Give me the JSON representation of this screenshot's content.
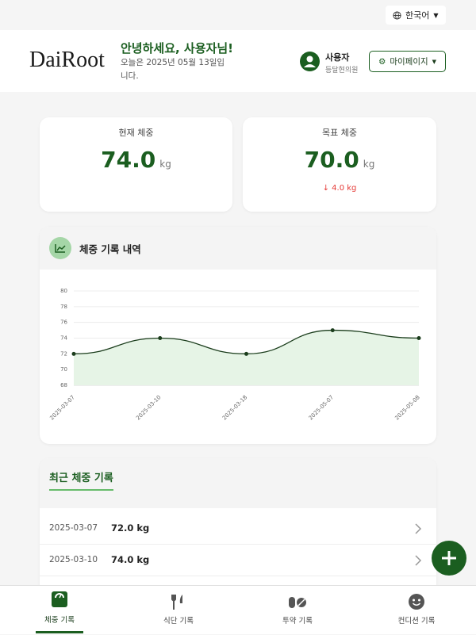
{
  "top_bar": {
    "language": "한국어"
  },
  "header": {
    "logo": "DaiRoot",
    "greeting": "안녕하세요, 사용자님!",
    "date_text": "오늘은 2025년 05월 13일입니다.",
    "user_name": "사용자",
    "clinic": "등달현의원",
    "mypage_button": "마이페이지"
  },
  "weight_cards": [
    {
      "label": "현재 체중",
      "value": "74.0",
      "unit": "kg"
    },
    {
      "label": "목표 체중",
      "value": "70.0",
      "unit": "kg",
      "difference": "4.0 kg"
    }
  ],
  "chart_data": {
    "type": "line",
    "title": "체중 기록 내역",
    "categories": [
      "2025-03-07",
      "2025-03-10",
      "2025-03-18",
      "2025-05-07",
      "2025-05-08"
    ],
    "values": [
      72,
      74,
      72,
      75,
      74
    ],
    "color": "#1b3d1c",
    "fill": "#e6f4e6",
    "ylim": [
      68,
      80
    ],
    "yticks": [
      68,
      70,
      72,
      74,
      76,
      78,
      80
    ],
    "grid": true
  },
  "recent_records": {
    "title": "최근 체중 기록",
    "rows": [
      {
        "date": "2025-03-07",
        "weight": "72.0 kg"
      },
      {
        "date": "2025-03-10",
        "weight": "74.0 kg"
      }
    ]
  },
  "bottom_nav": [
    "체중 기록",
    "식단 기록",
    "투약 기록",
    "컨디션 기록"
  ]
}
